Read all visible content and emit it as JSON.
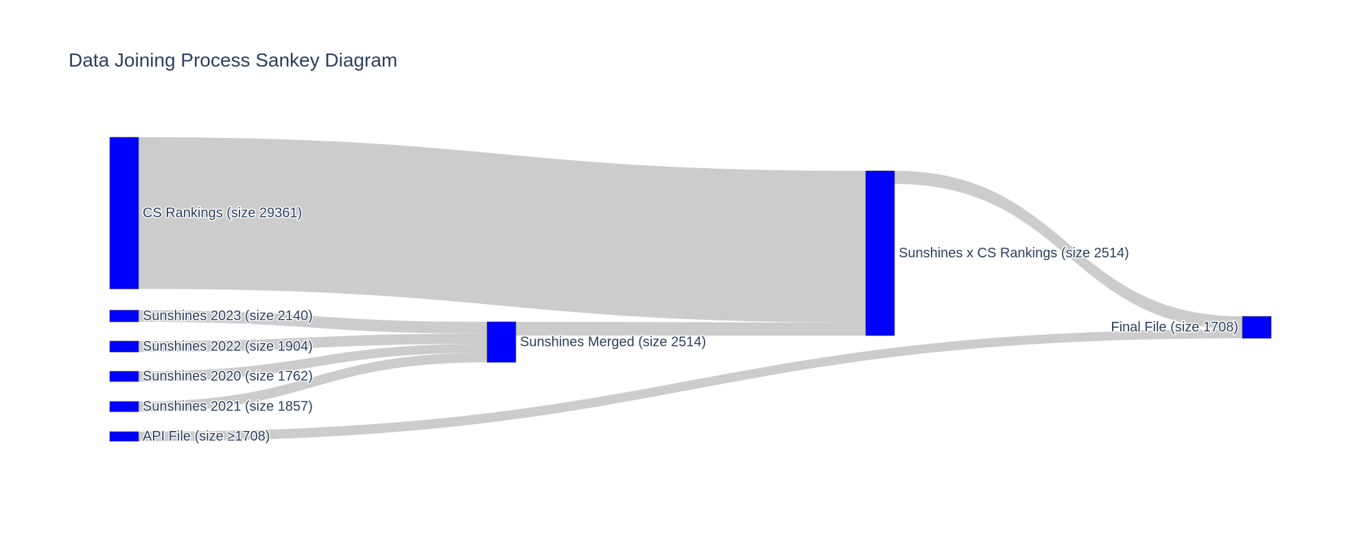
{
  "title": "Data Joining Process Sankey Diagram",
  "colors": {
    "node": "#0000ff",
    "link": "#cccccc",
    "text": "#2a3f5f",
    "background": "#ffffff"
  },
  "nodes": [
    {
      "id": "cs",
      "label": "CS Rankings (size 29361)"
    },
    {
      "id": "s2023",
      "label": "Sunshines 2023 (size 2140)"
    },
    {
      "id": "s2022",
      "label": "Sunshines 2022 (size 1904)"
    },
    {
      "id": "s2020",
      "label": "Sunshines 2020 (size 1762)"
    },
    {
      "id": "s2021",
      "label": "Sunshines 2021 (size 1857)"
    },
    {
      "id": "api",
      "label": "API File (size ≥1708)"
    },
    {
      "id": "merged",
      "label": "Sunshines Merged (size 2514)"
    },
    {
      "id": "cross",
      "label": "Sunshines x CS Rankings (size 2514)"
    },
    {
      "id": "final",
      "label": "Final File (size 1708)"
    }
  ],
  "links": [
    {
      "source": "cs",
      "target": "cross"
    },
    {
      "source": "s2023",
      "target": "merged"
    },
    {
      "source": "s2022",
      "target": "merged"
    },
    {
      "source": "s2020",
      "target": "merged"
    },
    {
      "source": "s2021",
      "target": "merged"
    },
    {
      "source": "merged",
      "target": "cross"
    },
    {
      "source": "cross",
      "target": "final"
    },
    {
      "source": "api",
      "target": "final"
    }
  ]
}
